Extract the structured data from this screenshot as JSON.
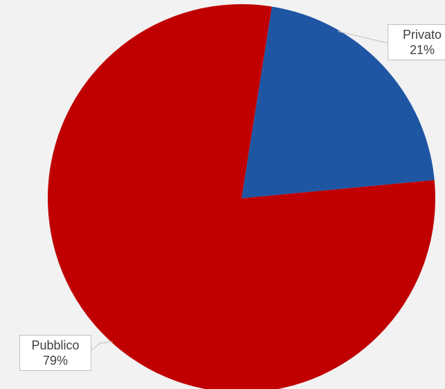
{
  "chart_data": {
    "type": "pie",
    "categories": [
      "Privato",
      "Pubblico"
    ],
    "values": [
      21,
      79
    ],
    "data_labels": [
      {
        "category": "Privato",
        "percent": "21%"
      },
      {
        "category": "Pubblico",
        "percent": "79%"
      }
    ],
    "colors": {
      "Privato": "#1f56a3",
      "Pubblico": "#c00000"
    },
    "start_angle_deg": 9,
    "legend": "none"
  }
}
